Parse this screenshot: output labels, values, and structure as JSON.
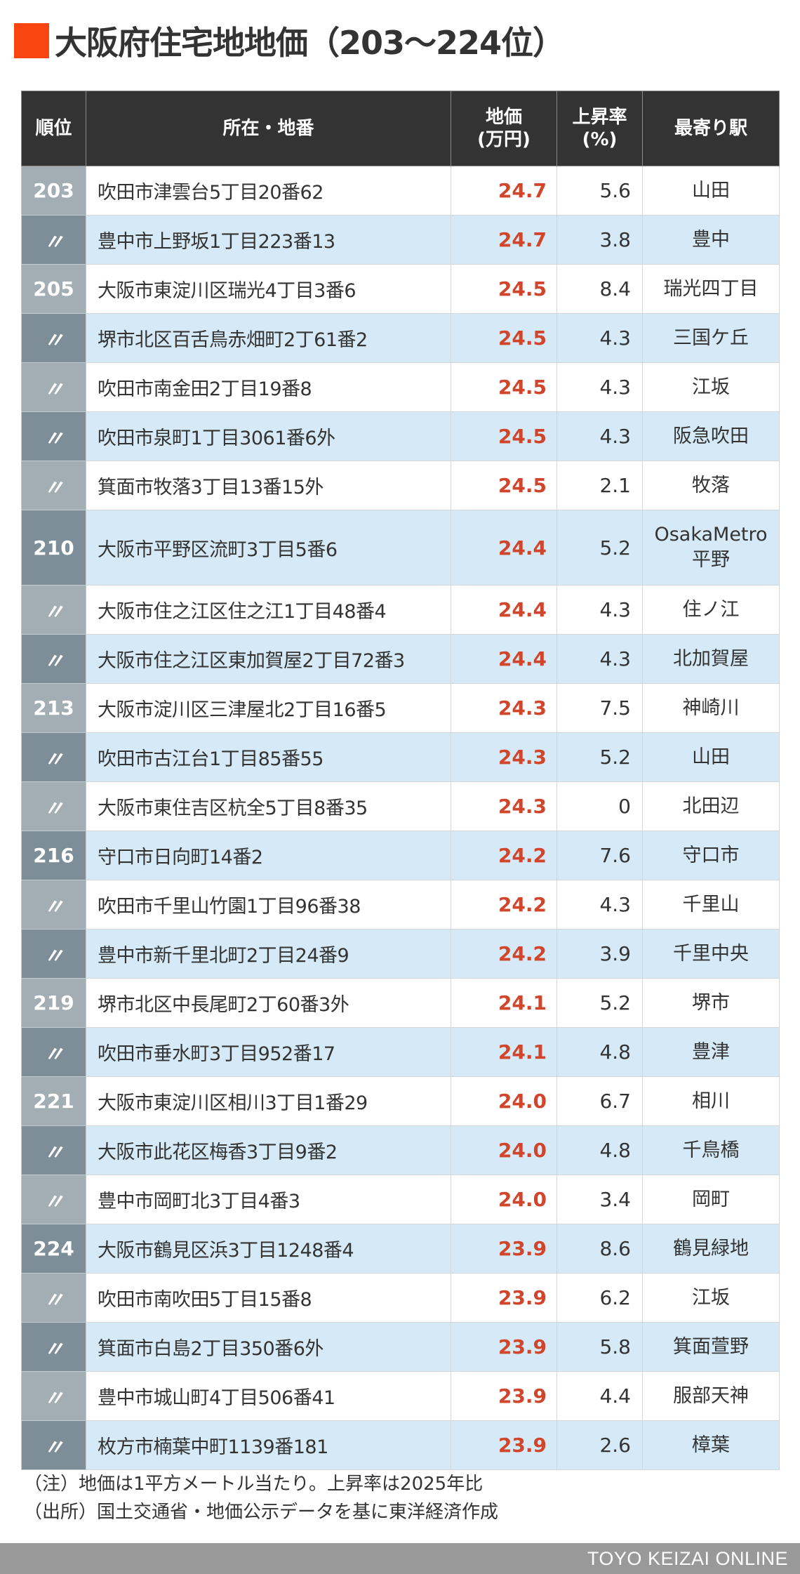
{
  "header": {
    "title": "大阪府住宅地地価（203〜224位）",
    "accent_color": "#fb4510"
  },
  "table": {
    "columns": {
      "rank": "順位",
      "address": "所在・地番",
      "price_line1": "地価",
      "price_line2": "(万円)",
      "rate_line1": "上昇率",
      "rate_line2": "(%)",
      "station": "最寄り駅"
    },
    "price_color": "#d0452b",
    "rows": [
      {
        "rank": "203",
        "address": "吹田市津雲台5丁目20番62",
        "price": "24.7",
        "rate": "5.6",
        "station": "山田"
      },
      {
        "rank": "〃",
        "address": "豊中市上野坂1丁目223番13",
        "price": "24.7",
        "rate": "3.8",
        "station": "豊中"
      },
      {
        "rank": "205",
        "address": "大阪市東淀川区瑞光4丁目3番6",
        "price": "24.5",
        "rate": "8.4",
        "station": "瑞光四丁目"
      },
      {
        "rank": "〃",
        "address": "堺市北区百舌鳥赤畑町2丁61番2",
        "price": "24.5",
        "rate": "4.3",
        "station": "三国ケ丘"
      },
      {
        "rank": "〃",
        "address": "吹田市南金田2丁目19番8",
        "price": "24.5",
        "rate": "4.3",
        "station": "江坂"
      },
      {
        "rank": "〃",
        "address": "吹田市泉町1丁目3061番6外",
        "price": "24.5",
        "rate": "4.3",
        "station": "阪急吹田"
      },
      {
        "rank": "〃",
        "address": "箕面市牧落3丁目13番15外",
        "price": "24.5",
        "rate": "2.1",
        "station": "牧落"
      },
      {
        "rank": "210",
        "address": "大阪市平野区流町3丁目5番6",
        "price": "24.4",
        "rate": "5.2",
        "station": "OsakaMetro\n平野"
      },
      {
        "rank": "〃",
        "address": "大阪市住之江区住之江1丁目48番4",
        "price": "24.4",
        "rate": "4.3",
        "station": "住ノ江"
      },
      {
        "rank": "〃",
        "address": "大阪市住之江区東加賀屋2丁目72番3",
        "price": "24.4",
        "rate": "4.3",
        "station": "北加賀屋"
      },
      {
        "rank": "213",
        "address": "大阪市淀川区三津屋北2丁目16番5",
        "price": "24.3",
        "rate": "7.5",
        "station": "神崎川"
      },
      {
        "rank": "〃",
        "address": "吹田市古江台1丁目85番55",
        "price": "24.3",
        "rate": "5.2",
        "station": "山田"
      },
      {
        "rank": "〃",
        "address": "大阪市東住吉区杭全5丁目8番35",
        "price": "24.3",
        "rate": "0",
        "station": "北田辺"
      },
      {
        "rank": "216",
        "address": "守口市日向町14番2",
        "price": "24.2",
        "rate": "7.6",
        "station": "守口市"
      },
      {
        "rank": "〃",
        "address": "吹田市千里山竹園1丁目96番38",
        "price": "24.2",
        "rate": "4.3",
        "station": "千里山"
      },
      {
        "rank": "〃",
        "address": "豊中市新千里北町2丁目24番9",
        "price": "24.2",
        "rate": "3.9",
        "station": "千里中央"
      },
      {
        "rank": "219",
        "address": "堺市北区中長尾町2丁60番3外",
        "price": "24.1",
        "rate": "5.2",
        "station": "堺市"
      },
      {
        "rank": "〃",
        "address": "吹田市垂水町3丁目952番17",
        "price": "24.1",
        "rate": "4.8",
        "station": "豊津"
      },
      {
        "rank": "221",
        "address": "大阪市東淀川区相川3丁目1番29",
        "price": "24.0",
        "rate": "6.7",
        "station": "相川"
      },
      {
        "rank": "〃",
        "address": "大阪市此花区梅香3丁目9番2",
        "price": "24.0",
        "rate": "4.8",
        "station": "千鳥橋"
      },
      {
        "rank": "〃",
        "address": "豊中市岡町北3丁目4番3",
        "price": "24.0",
        "rate": "3.4",
        "station": "岡町"
      },
      {
        "rank": "224",
        "address": "大阪市鶴見区浜3丁目1248番4",
        "price": "23.9",
        "rate": "8.6",
        "station": "鶴見緑地"
      },
      {
        "rank": "〃",
        "address": "吹田市南吹田5丁目15番8",
        "price": "23.9",
        "rate": "6.2",
        "station": "江坂"
      },
      {
        "rank": "〃",
        "address": "箕面市白島2丁目350番6外",
        "price": "23.9",
        "rate": "5.8",
        "station": "箕面萱野"
      },
      {
        "rank": "〃",
        "address": "豊中市城山町4丁目506番41",
        "price": "23.9",
        "rate": "4.4",
        "station": "服部天神"
      },
      {
        "rank": "〃",
        "address": "枚方市楠葉中町1139番181",
        "price": "23.9",
        "rate": "2.6",
        "station": "樟葉"
      }
    ]
  },
  "notes": {
    "note": "（注）地価は1平方メートル当たり。上昇率は2025年比",
    "source": "（出所）国土交通省・地価公示データを基に東洋経済作成"
  },
  "footer": {
    "brand": "TOYO KEIZAI ONLINE"
  }
}
